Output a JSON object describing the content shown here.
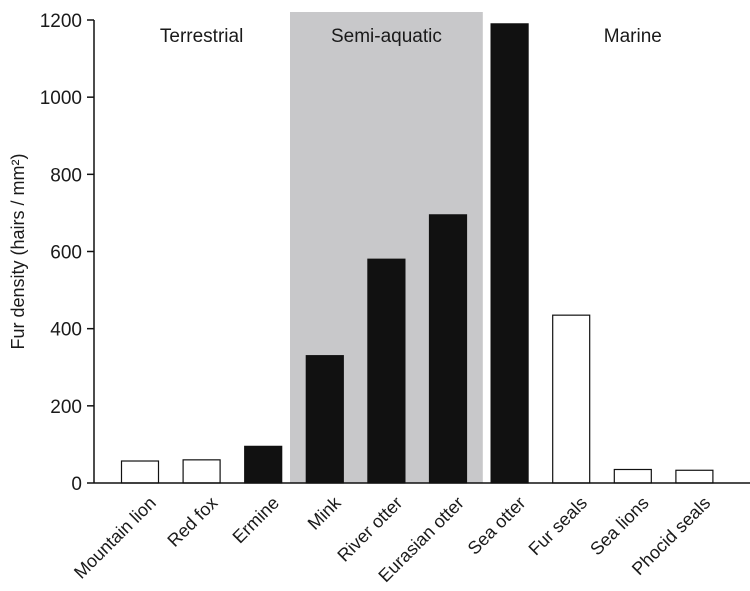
{
  "chart_data": {
    "type": "bar",
    "title": "",
    "xlabel": "",
    "ylabel": "Fur density (hairs / mm²)",
    "ylim": [
      0,
      1200
    ],
    "yticks": [
      0,
      200,
      400,
      600,
      800,
      1000,
      1200
    ],
    "grid": false,
    "categories": [
      "Mountain lion",
      "Red fox",
      "Ermine",
      "Mink",
      "River otter",
      "Eurasian otter",
      "Sea otter",
      "Fur seals",
      "Sea lions",
      "Phocid seals"
    ],
    "values": [
      57,
      60,
      95,
      330,
      580,
      695,
      1190,
      435,
      35,
      33
    ],
    "bar_fill": [
      "white",
      "white",
      "black",
      "black",
      "black",
      "black",
      "black",
      "white",
      "white",
      "white"
    ],
    "regions": [
      {
        "label": "Terrestrial",
        "from_index": 0,
        "to_index": 2,
        "shaded": false
      },
      {
        "label": "Semi-aquatic",
        "from_index": 3,
        "to_index": 5,
        "shaded": true
      },
      {
        "label": "Marine",
        "from_index": 7,
        "to_index": 9,
        "shaded": false
      }
    ],
    "colors": {
      "shade": "#c8c8ca",
      "filled": "#111111",
      "empty": "#ffffff",
      "stroke": "#111111"
    }
  }
}
